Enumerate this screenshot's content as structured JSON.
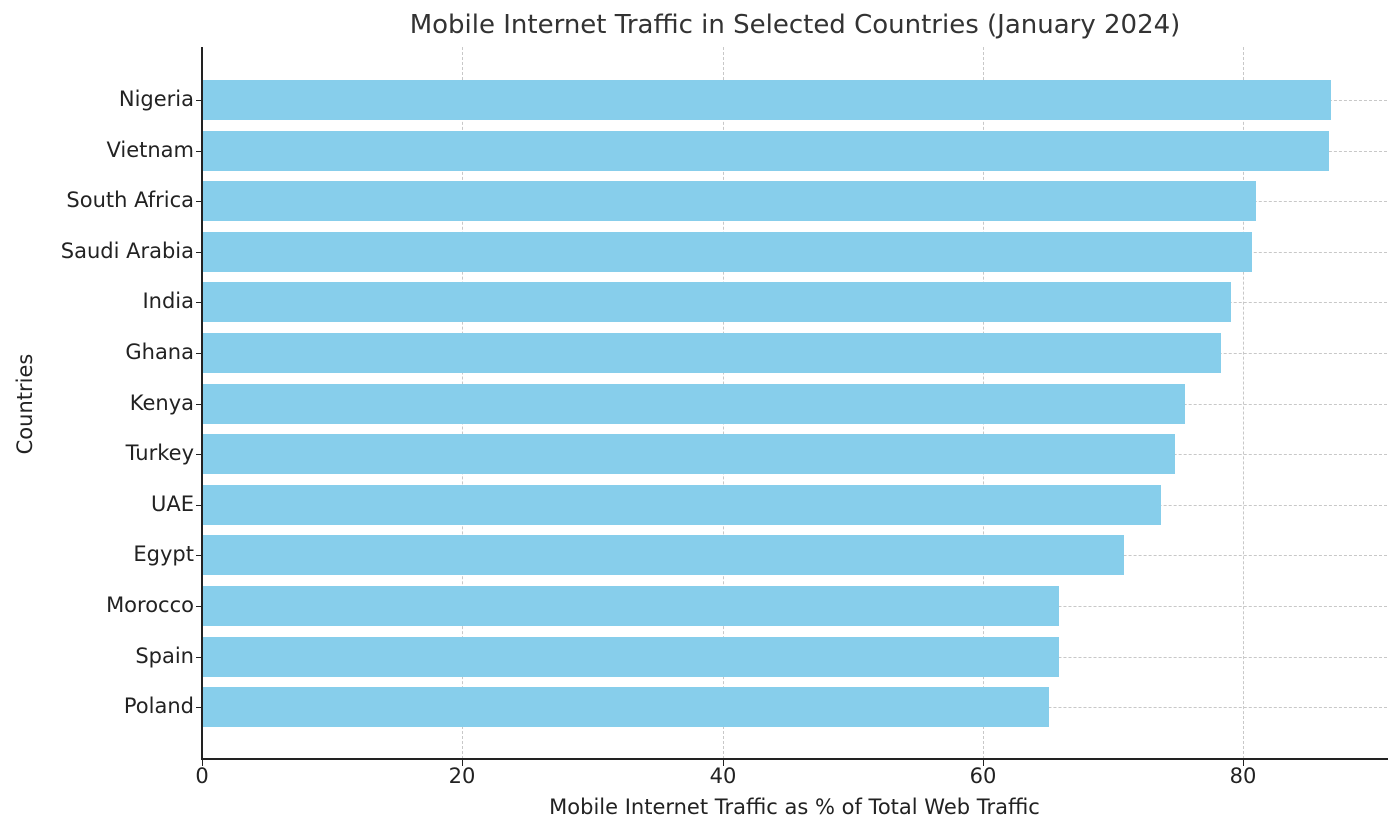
{
  "chart_data": {
    "type": "bar",
    "orientation": "horizontal",
    "title": "Mobile Internet Traffic in Selected Countries (January 2024)",
    "xlabel": "Mobile Internet Traffic as % of Total Web Traffic",
    "ylabel": "Countries",
    "xlim": [
      0,
      91
    ],
    "xticks": [
      0,
      20,
      40,
      60,
      80
    ],
    "grid": true,
    "bar_color": "#87ceeb",
    "categories": [
      "Nigeria",
      "Vietnam",
      "South Africa",
      "Saudi Arabia",
      "India",
      "Ghana",
      "Kenya",
      "Turkey",
      "UAE",
      "Egypt",
      "Morocco",
      "Spain",
      "Poland"
    ],
    "values": [
      86.7,
      86.5,
      80.9,
      80.6,
      79.0,
      78.2,
      75.5,
      74.7,
      73.6,
      70.8,
      65.8,
      65.8,
      65.0
    ]
  }
}
